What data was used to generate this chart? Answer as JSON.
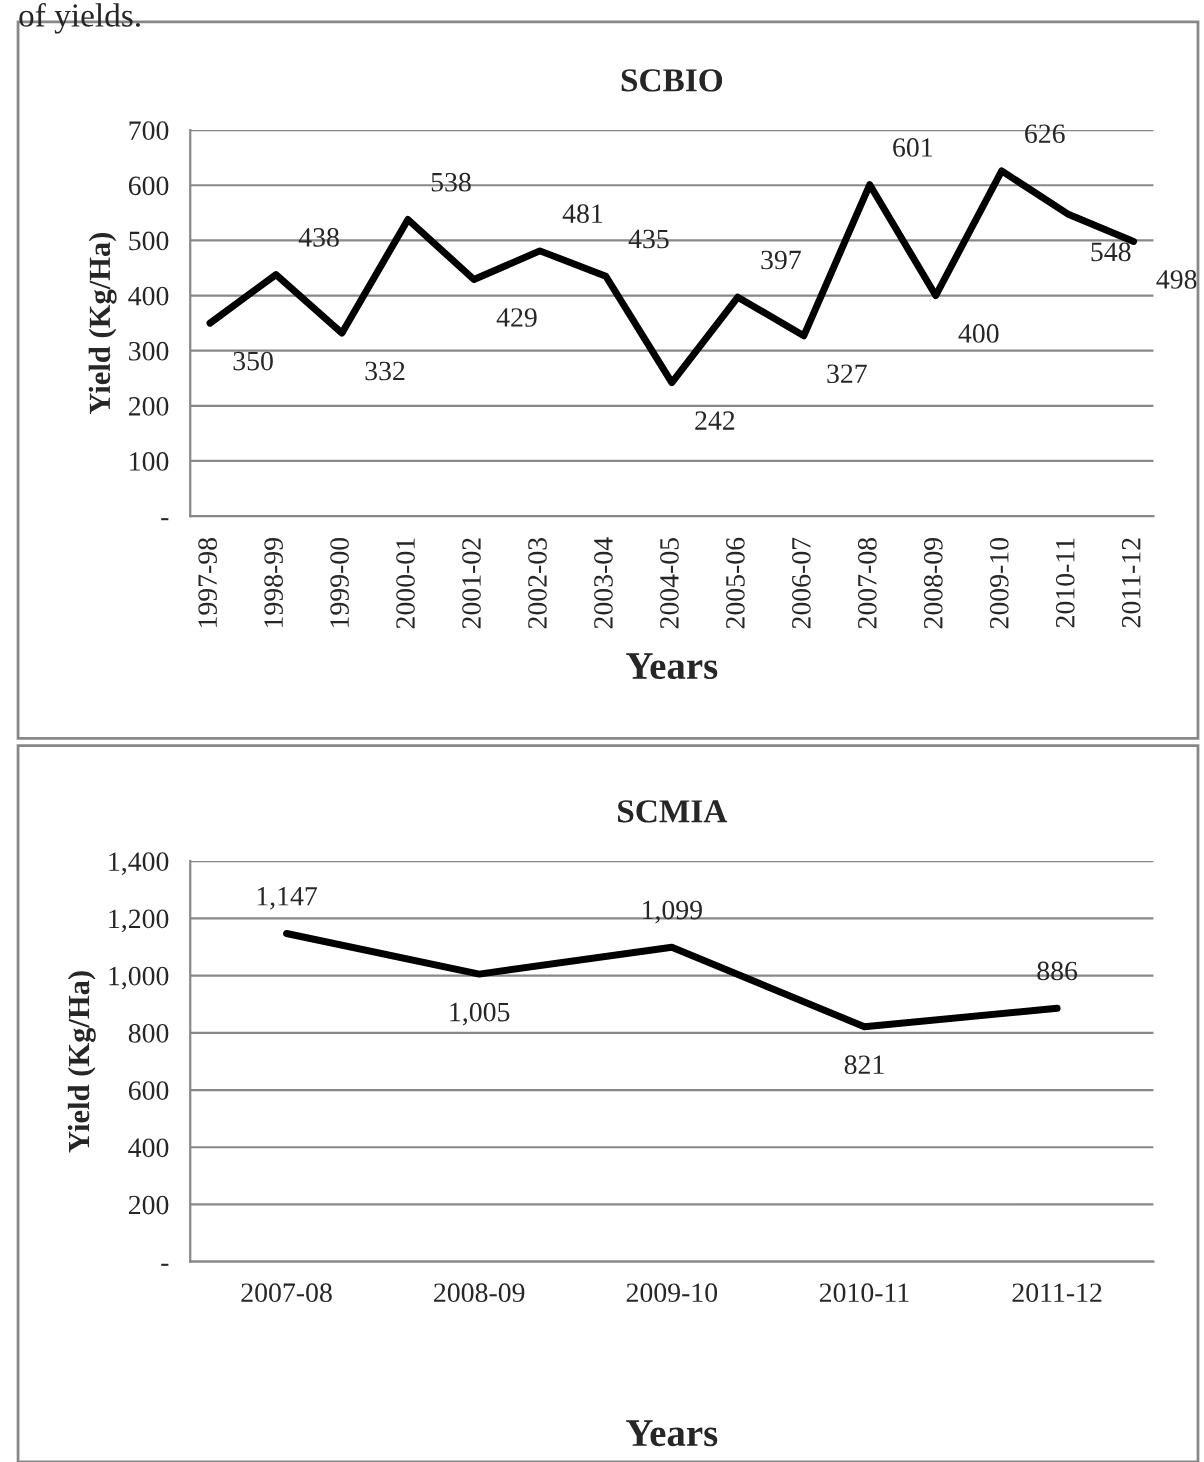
{
  "chart_data": [
    {
      "type": "line",
      "title": "SCBIO",
      "xlabel": "Years",
      "ylabel": "Yield (Kg/Ha)",
      "annotations": [
        "of yields."
      ],
      "categories": [
        "1997-98",
        "1998-99",
        "1999-00",
        "2000-01",
        "2001-02",
        "2002-03",
        "2003-04",
        "2004-05",
        "2005-06",
        "2006-07",
        "2007-08",
        "2008-09",
        "2009-10",
        "2010-11",
        "2011-12"
      ],
      "series": [
        {
          "color": "#000000",
          "values": [
            350,
            438,
            332,
            538,
            429,
            481,
            435,
            242,
            397,
            327,
            601,
            400,
            626,
            548,
            498
          ]
        }
      ],
      "ylim": [
        0,
        700
      ],
      "yticks": [
        {
          "value": 0,
          "label": "-"
        },
        100,
        200,
        300,
        400,
        500,
        600,
        700
      ],
      "grid": "y",
      "data_labels": true
    },
    {
      "type": "line",
      "title": "SCMIA",
      "xlabel": "Years",
      "ylabel": "Yield (Kg/Ha)",
      "categories": [
        "2007-08",
        "2008-09",
        "2009-10",
        "2010-11",
        "2011-12"
      ],
      "series": [
        {
          "color": "#000000",
          "values": [
            1147,
            1005,
            1099,
            821,
            886
          ],
          "value_labels": [
            "1,147",
            "1,005",
            "1,099",
            "821",
            "886"
          ]
        }
      ],
      "ylim": [
        0,
        1400
      ],
      "yticks": [
        {
          "value": 0,
          "label": "-"
        },
        {
          "value": 200,
          "label": "200"
        },
        {
          "value": 400,
          "label": "400"
        },
        {
          "value": 600,
          "label": "600"
        },
        {
          "value": 800,
          "label": "800"
        },
        {
          "value": 1000,
          "label": "1,000"
        },
        {
          "value": 1200,
          "label": "1,200"
        },
        {
          "value": 1400,
          "label": "1,400"
        }
      ],
      "grid": "y"
    }
  ]
}
